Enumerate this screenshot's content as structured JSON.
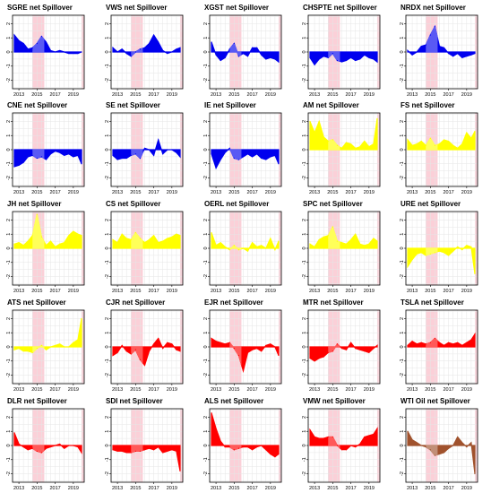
{
  "chart_data": {
    "type": "area",
    "layout": "5x5 grid of small multiples",
    "x_ticks": [
      "2013",
      "2015",
      "2017",
      "2019"
    ],
    "y_ticks": [
      "-2",
      "-1",
      "0",
      "1",
      "2"
    ],
    "ylim": [
      -2.6,
      2.6
    ],
    "xlim": [
      2012.3,
      2020.2
    ],
    "x_tick_values": [
      2013,
      2015,
      2017,
      2019
    ],
    "shaded_regions": [
      {
        "from": 2014.5,
        "to": 2015.8,
        "color": "#fbd0d8"
      },
      {
        "from": 2019.9,
        "to": 2020.2,
        "color": "#fbd0d8"
      }
    ],
    "grid": true,
    "years_sampled": [
      2012.5,
      2013.0,
      2013.5,
      2014.0,
      2014.5,
      2015.0,
      2015.5,
      2016.0,
      2016.5,
      2017.0,
      2017.5,
      2018.0,
      2018.5,
      2019.0,
      2019.5,
      2019.9
    ],
    "panels": [
      {
        "title": "SGRE net Spillover",
        "color": "#0000ee",
        "values": [
          1.2,
          0.8,
          0.6,
          0.2,
          0.3,
          0.6,
          1.1,
          0.7,
          0.1,
          0.0,
          0.1,
          0.0,
          -0.1,
          -0.1,
          -0.1,
          0.0
        ]
      },
      {
        "title": "VWS net Spillover",
        "color": "#0000ee",
        "values": [
          0.3,
          0.0,
          0.2,
          -0.1,
          -0.3,
          0.0,
          0.2,
          0.3,
          0.6,
          1.2,
          0.7,
          0.1,
          -0.1,
          0.0,
          0.2,
          0.3
        ]
      },
      {
        "title": "XGST net Spillover",
        "color": "#0000ee",
        "values": [
          0.7,
          -0.2,
          -0.6,
          -0.4,
          0.2,
          0.6,
          -0.3,
          -0.1,
          -0.3,
          0.3,
          0.3,
          -0.2,
          -0.5,
          -0.4,
          -0.5,
          -0.7
        ]
      },
      {
        "title": "CHSPTE net Spillover",
        "color": "#0000ee",
        "values": [
          -0.4,
          -0.9,
          -0.5,
          -0.3,
          -0.4,
          -0.1,
          -0.6,
          -0.7,
          -0.6,
          -0.4,
          -0.6,
          -0.5,
          -0.2,
          -0.4,
          -0.5,
          -0.7
        ]
      },
      {
        "title": "NRDX net Spillover",
        "color": "#0000ee",
        "values": [
          0.1,
          -0.2,
          0.0,
          0.4,
          0.5,
          1.2,
          1.8,
          0.4,
          0.3,
          -0.1,
          -0.3,
          -0.1,
          -0.4,
          -0.3,
          -0.2,
          -0.1
        ]
      },
      {
        "title": "CNE net Spillover",
        "color": "#0000ee",
        "values": [
          -1.2,
          -1.1,
          -0.9,
          -0.5,
          -0.4,
          -0.6,
          -0.5,
          -0.7,
          -0.3,
          -0.1,
          -0.2,
          -0.4,
          -0.3,
          -0.5,
          -0.4,
          -1.0
        ]
      },
      {
        "title": "SE net Spillover",
        "color": "#0000ee",
        "values": [
          -0.4,
          -0.7,
          -0.6,
          -0.6,
          -0.4,
          -0.3,
          -0.6,
          0.1,
          0.0,
          -0.4,
          0.7,
          -0.3,
          0.0,
          0.0,
          -0.2,
          -0.5
        ]
      },
      {
        "title": "IE net Spillover",
        "color": "#0000ee",
        "values": [
          -0.3,
          -1.3,
          -0.7,
          -0.2,
          0.1,
          -0.6,
          -0.7,
          -0.5,
          -0.3,
          -0.5,
          -0.3,
          -0.6,
          -0.7,
          -0.5,
          -0.4,
          -1.0
        ]
      },
      {
        "title": "AM net Spillover",
        "color": "#ffff00",
        "values": [
          2.0,
          1.2,
          2.0,
          0.9,
          0.6,
          0.7,
          0.3,
          0.1,
          0.5,
          0.4,
          0.1,
          0.2,
          0.6,
          0.2,
          0.4,
          2.2
        ]
      },
      {
        "title": "FS net Spillover",
        "color": "#ffff00",
        "values": [
          0.7,
          0.3,
          0.4,
          0.6,
          0.3,
          0.8,
          0.3,
          0.4,
          0.7,
          0.6,
          0.3,
          0.1,
          0.4,
          1.2,
          0.8,
          1.3
        ]
      },
      {
        "title": "JH net Spillover",
        "color": "#ffff00",
        "values": [
          0.3,
          0.4,
          0.2,
          0.5,
          0.9,
          2.4,
          0.8,
          0.2,
          0.5,
          0.1,
          0.3,
          0.4,
          0.9,
          1.2,
          1.0,
          0.9
        ]
      },
      {
        "title": "CS net Spillover",
        "color": "#ffff00",
        "values": [
          0.6,
          0.4,
          1.0,
          0.7,
          0.6,
          1.1,
          0.7,
          0.4,
          0.6,
          0.9,
          0.4,
          0.5,
          0.7,
          0.8,
          1.0,
          0.9
        ]
      },
      {
        "title": "OERL net Spillover",
        "color": "#ffff00",
        "values": [
          1.1,
          0.2,
          0.4,
          0.1,
          -0.1,
          0.2,
          -0.1,
          0.0,
          -0.2,
          0.4,
          0.1,
          0.2,
          0.0,
          0.7,
          -0.1,
          0.5
        ]
      },
      {
        "title": "SPC net Spillover",
        "color": "#ffff00",
        "values": [
          0.3,
          0.1,
          0.6,
          0.8,
          0.9,
          1.5,
          0.5,
          0.4,
          0.3,
          0.6,
          1.0,
          0.3,
          0.2,
          0.3,
          0.7,
          0.5
        ]
      },
      {
        "title": "URE net Spillover",
        "color": "#ffff00",
        "values": [
          -1.3,
          -0.8,
          -0.4,
          -0.3,
          -0.5,
          -0.4,
          -0.3,
          -0.2,
          -0.3,
          -0.5,
          -0.2,
          0.1,
          -0.1,
          0.2,
          0.1,
          -1.8
        ]
      },
      {
        "title": "ATS net Spillover",
        "color": "#ffff00",
        "values": [
          -0.2,
          -0.1,
          -0.3,
          -0.3,
          -0.4,
          -0.1,
          0.1,
          -0.2,
          0.0,
          0.1,
          0.2,
          0.0,
          0.0,
          0.3,
          0.5,
          2.0
        ]
      },
      {
        "title": "CJR net Spillover",
        "color": "#ff0000",
        "values": [
          -0.6,
          -0.4,
          0.1,
          -0.3,
          -0.5,
          -0.2,
          -0.9,
          -1.3,
          -0.3,
          0.2,
          0.6,
          -0.1,
          0.3,
          0.2,
          -0.2,
          -0.3
        ]
      },
      {
        "title": "EJR net Spillover",
        "color": "#ff0000",
        "values": [
          0.6,
          0.4,
          0.3,
          0.2,
          0.3,
          -0.1,
          -0.6,
          -1.7,
          -0.4,
          -0.2,
          -0.1,
          -0.3,
          0.1,
          0.2,
          0.0,
          -0.6
        ]
      },
      {
        "title": "MTR net Spillover",
        "color": "#ff0000",
        "values": [
          -0.8,
          -1.0,
          -0.8,
          -0.7,
          -0.4,
          -0.3,
          0.2,
          -0.1,
          -0.2,
          0.3,
          -0.1,
          -0.2,
          -0.3,
          -0.4,
          -0.1,
          0.1
        ]
      },
      {
        "title": "TSLA net Spillover",
        "color": "#ff0000",
        "values": [
          0.1,
          0.4,
          0.2,
          0.3,
          0.2,
          0.3,
          0.6,
          0.3,
          0.1,
          0.3,
          0.2,
          0.3,
          0.1,
          0.3,
          0.5,
          0.9
        ]
      },
      {
        "title": "DLR net Spillover",
        "color": "#ff0000",
        "values": [
          0.9,
          0.1,
          -0.1,
          -0.3,
          -0.2,
          -0.4,
          -0.5,
          -0.2,
          -0.1,
          0.0,
          0.1,
          -0.2,
          0.0,
          0.0,
          -0.1,
          -0.5
        ]
      },
      {
        "title": "SDI net Spillover",
        "color": "#ff0000",
        "values": [
          -0.3,
          -0.4,
          -0.4,
          -0.5,
          -0.5,
          -0.4,
          -0.4,
          -0.3,
          -0.2,
          -0.3,
          -0.1,
          -0.5,
          -0.4,
          -0.3,
          -0.4,
          -1.8
        ]
      },
      {
        "title": "ALS net Spillover",
        "color": "#ff0000",
        "values": [
          2.3,
          1.2,
          0.3,
          -0.1,
          -0.1,
          -0.3,
          -0.2,
          -0.1,
          -0.1,
          -0.3,
          -0.1,
          0.0,
          -0.3,
          -0.6,
          -0.8,
          -0.6
        ]
      },
      {
        "title": "VMW net Spillover",
        "color": "#ff0000",
        "values": [
          1.1,
          0.6,
          0.5,
          0.5,
          0.6,
          0.6,
          0.0,
          -0.3,
          -0.3,
          0.0,
          -0.1,
          0.1,
          0.6,
          0.7,
          0.8,
          1.2
        ]
      },
      {
        "title": "WTI Oil net Spillover",
        "color": "#a0522d",
        "values": [
          1.0,
          0.4,
          0.2,
          0.0,
          -0.1,
          -0.3,
          -0.7,
          -0.6,
          -0.5,
          -0.2,
          0.0,
          0.6,
          0.2,
          -0.1,
          0.2,
          -2.0
        ]
      }
    ]
  }
}
